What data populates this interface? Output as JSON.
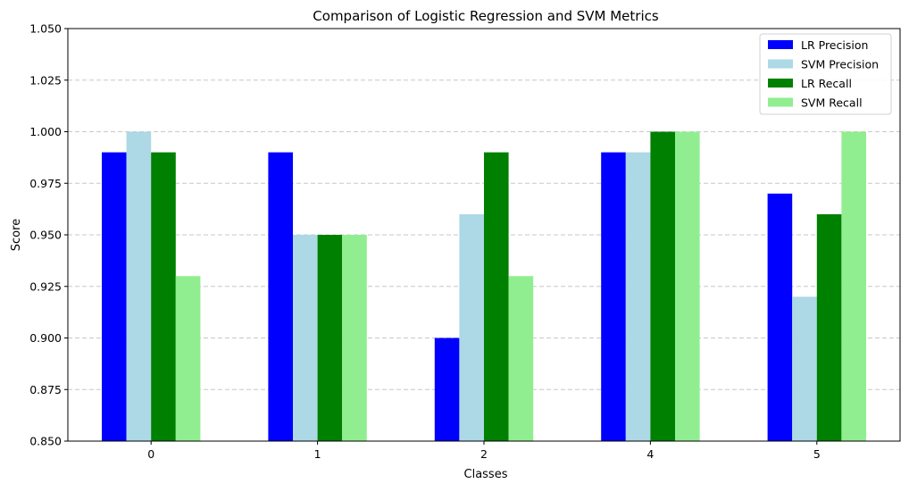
{
  "chart_data": {
    "type": "bar",
    "title": "Comparison of Logistic Regression and SVM Metrics",
    "xlabel": "Classes",
    "ylabel": "Score",
    "categories": [
      "0",
      "1",
      "2",
      "4",
      "5"
    ],
    "ylim": [
      0.85,
      1.05
    ],
    "yticks": [
      "0.850",
      "0.875",
      "0.900",
      "0.925",
      "0.950",
      "0.975",
      "1.000",
      "1.025",
      "1.050"
    ],
    "ytick_values": [
      0.85,
      0.875,
      0.9,
      0.925,
      0.95,
      0.975,
      1.0,
      1.025,
      1.05
    ],
    "grid": "y-dashed",
    "legend_position": "top-right",
    "series": [
      {
        "name": "LR Precision",
        "color": "#0000ff",
        "values": [
          0.99,
          0.99,
          0.9,
          0.99,
          0.97
        ]
      },
      {
        "name": "SVM Precision",
        "color": "#add8e6",
        "values": [
          1.0,
          0.95,
          0.96,
          0.99,
          0.92
        ]
      },
      {
        "name": "LR Recall",
        "color": "#008000",
        "values": [
          0.99,
          0.95,
          0.99,
          1.0,
          0.96
        ]
      },
      {
        "name": "SVM Recall",
        "color": "#90ee90",
        "values": [
          0.93,
          0.95,
          0.93,
          1.0,
          1.0
        ]
      }
    ]
  }
}
